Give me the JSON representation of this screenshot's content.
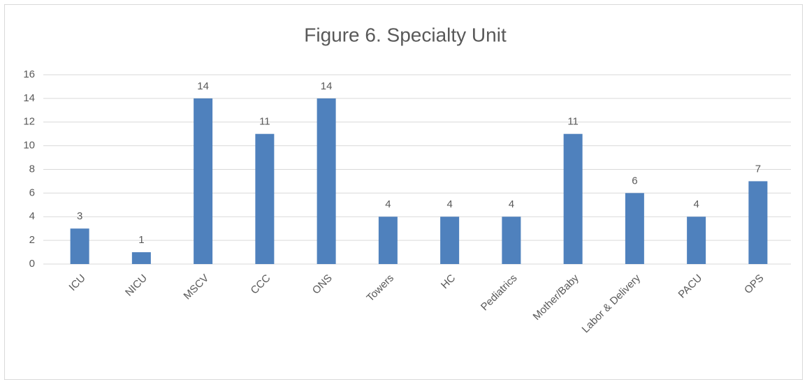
{
  "chart_data": {
    "type": "bar",
    "title": "Figure 6. Specialty Unit",
    "categories": [
      "ICU",
      "NICU",
      "MSCV",
      "CCC",
      "ONS",
      "Towers",
      "HC",
      "Pediatrics",
      "Mother/Baby",
      "Labor & Delivery",
      "PACU",
      "OPS"
    ],
    "values": [
      3,
      1,
      14,
      11,
      14,
      4,
      4,
      4,
      11,
      6,
      4,
      7
    ],
    "color": "#4f81bd",
    "ylim": [
      0,
      16
    ],
    "yticks": [
      0,
      2,
      4,
      6,
      8,
      10,
      12,
      14,
      16
    ],
    "grid": true
  }
}
